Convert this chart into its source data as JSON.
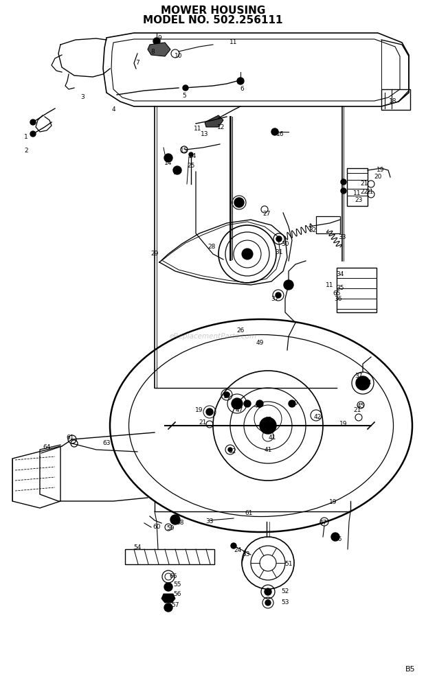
{
  "title_line1": "MOWER HOUSING",
  "title_line2": "MODEL NO. 502.256111",
  "watermark": "eReplacementParts.com",
  "page_label": "B5",
  "background_color": "#ffffff",
  "title_color": "#000000",
  "title_fontsize_pts": 11,
  "fig_width": 6.2,
  "fig_height": 9.92,
  "dpi": 100
}
